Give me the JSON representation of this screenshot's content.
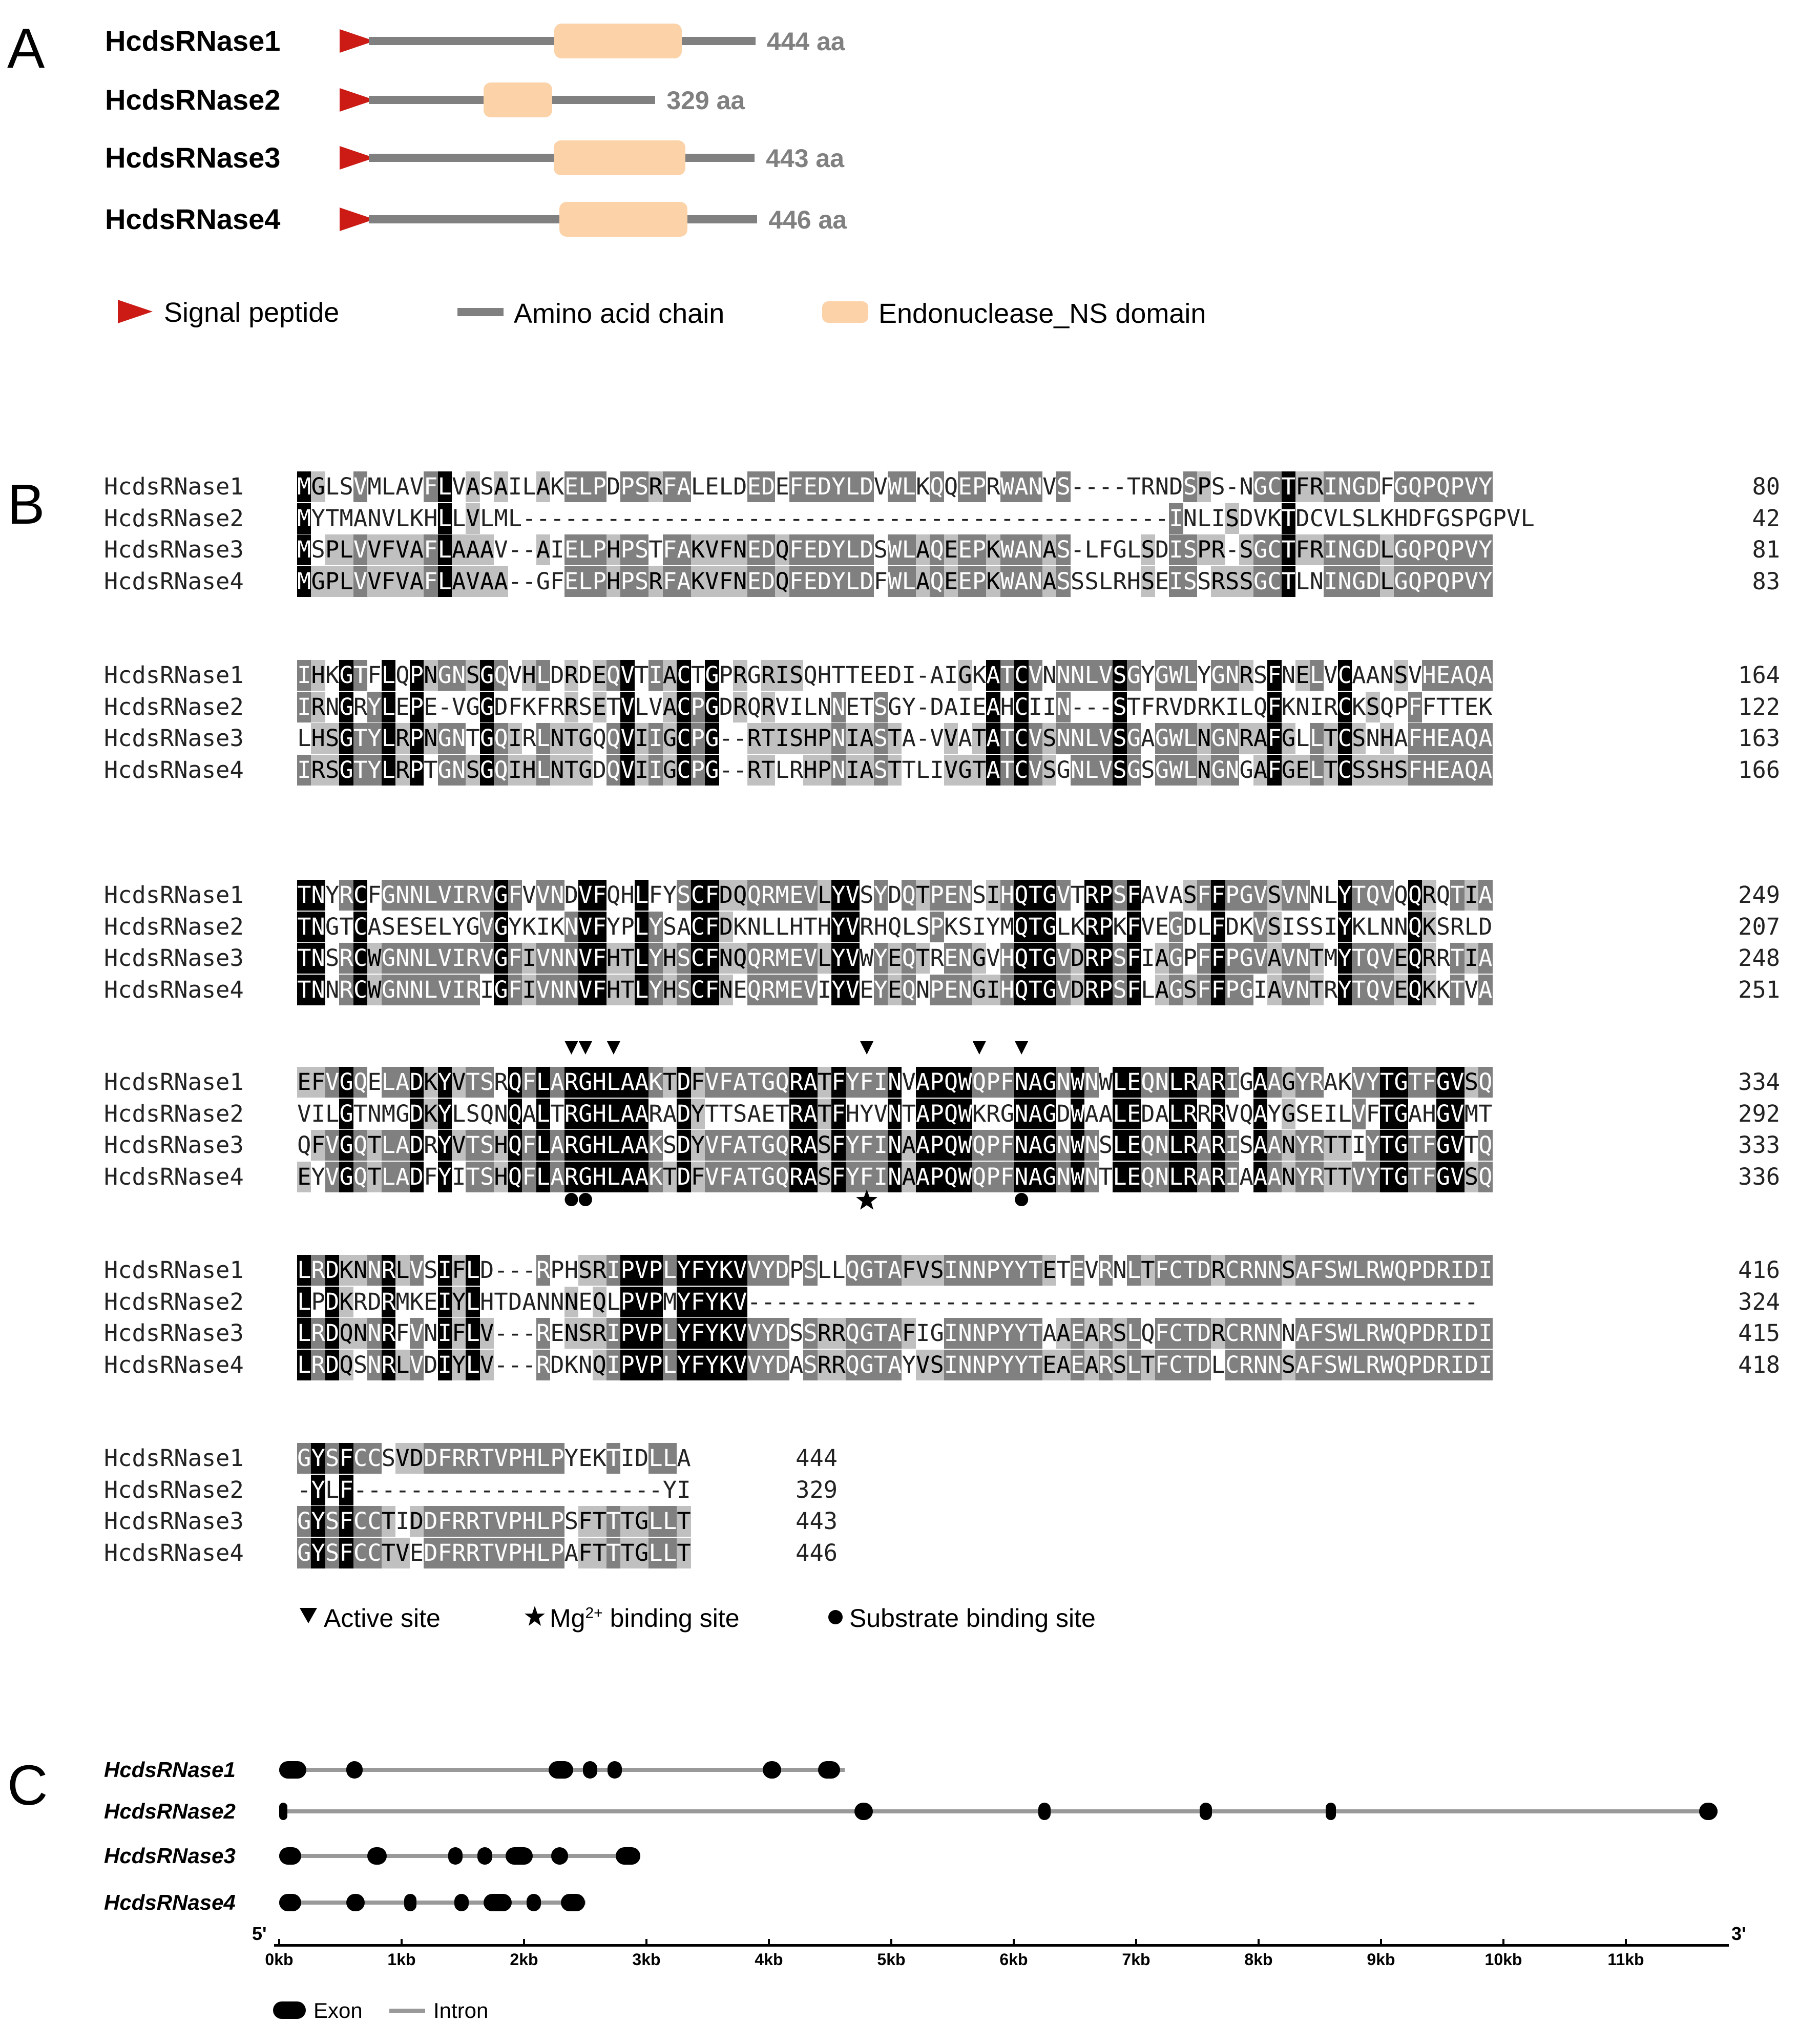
{
  "panel_a": {
    "letter": "A",
    "proteins": [
      {
        "name": "HcdsRNase1",
        "length_label": "444 aa",
        "length": 444,
        "domain_start": 0.48,
        "domain_end": 0.81
      },
      {
        "name": "HcdsRNase2",
        "length_label": "329 aa",
        "length": 329,
        "domain_start": 0.4,
        "domain_end": 0.64
      },
      {
        "name": "HcdsRNase3",
        "length_label": "443 aa",
        "length": 443,
        "domain_start": 0.48,
        "domain_end": 0.82
      },
      {
        "name": "HcdsRNase4",
        "length_label": "446 aa",
        "length": 446,
        "domain_start": 0.49,
        "domain_end": 0.82
      }
    ],
    "legend": {
      "signal_peptide": "Signal peptide",
      "amino_acid_chain": "Amino acid chain",
      "endonuclease_domain": "Endonuclease_NS domain"
    },
    "colors": {
      "signal": "#cc1a14",
      "chain": "#808080",
      "domain": "#fcd2a8"
    }
  },
  "panel_b": {
    "letter": "B",
    "blocks": [
      {
        "rows": [
          {
            "name": "HcdsRNase1",
            "seq": "MGLSVMLAVFLVASAILAKELPDPSRFALELDEDEFEDYLDVWLKQQEPRWANVS----TRNDSPS-NGCTFRINGDFGQPQPVY",
            "end": "80"
          },
          {
            "name": "HcdsRNase2",
            "seq": "MYTMANVLKHLLVLML----------------------------------------------INLISDVKTDCVLSLKHDFGSPGPVL",
            "end": "42"
          },
          {
            "name": "HcdsRNase3",
            "seq": "MSPLVVFVAFLAAAV--AIELPHPSTFAKVFNEDQFEDYLDSWLAQEEPKWANAS-LFGLSDISPR-SGCTFRINGDLGQPQPVY",
            "end": "81"
          },
          {
            "name": "HcdsRNase4",
            "seq": "MGPLVVFVAFLAVAA--GFELPHPSRFAKVFNEDQFEDYLDFWLAQEEPKWANASSSLRHSEISSRSSGCTLNINGDLGQPQPVY",
            "end": "83"
          }
        ]
      },
      {
        "rows": [
          {
            "name": "HcdsRNase1",
            "seq": "IHKGTFLQPNGNSGQVHLDRDEQVTIACTGPRGRISQHTTEEDI-AIGKATCVNNNLVSGYGWLYGNRSFNELVCAANSVHEAQA",
            "end": "164"
          },
          {
            "name": "HcdsRNase2",
            "seq": "IRNGRYLEPE-VGGDFKFRRSETVLVACPGDRQRVILNNETSGY-DAIEAHCIIN---STFRVDRKILQFKNIRCKSQPFFTTEK",
            "end": "122"
          },
          {
            "name": "HcdsRNase3",
            "seq": "LHSGTYLRPNGNTGQIRLNTGQQVIIGCPG--RTISHPNIASTA-VVATATCVSNNLVSGAGWLNGNRAFGLLTCSNHAFHEAQA",
            "end": "163"
          },
          {
            "name": "HcdsRNase4",
            "seq": "IRSGTYLRPTGNSGQIHLNTGDQVIIGCPG--RTLRHPNIASTTLIVGTATCVSGNLVSGSGWLNGNGAFGELTCSSHSFHEAQA",
            "end": "166"
          }
        ]
      },
      {
        "rows": [
          {
            "name": "HcdsRNase1",
            "seq": "TNYRCFGNNLVIRVGFVVNDVFQHLFYSCFDQQRMEVLYVSYDQTPENSIHQTGVTRPSFAVASFFPGVSVNNLYTQVQQRQTIA",
            "end": "249"
          },
          {
            "name": "HcdsRNase2",
            "seq": "TNGTCASESELYGVGYKIKNVFYPLYSACFDKNLLHTHYVRHQLSPKSIYMQTGLKRPKFVEGDLFDKVSISSIYKLNNQKSRLD",
            "end": "207"
          },
          {
            "name": "HcdsRNase3",
            "seq": "TNSRCWGNNLVIRVGFIVNNVFHTLYHSCFNQQRMEVLYVWYEQTRENGVHQTGVDRPSFIAGPFFPGVAVNTMYTQVEQRRTIA",
            "end": "248"
          },
          {
            "name": "HcdsRNase4",
            "seq": "TNNRCWGNNLVIRIGFIVNNVFHTLYHSCFNEQRMEVIYVEYEQNPENGIHQTGVDRPSFLAGSFFPGIAVNTRYTQVEQKKTVA",
            "end": "251"
          }
        ]
      },
      {
        "rows": [
          {
            "name": "HcdsRNase1",
            "seq": "EFVGQELADKYVTSRQFLARGHLAAKTDFVFATGQRATFYFINVAPQWQPFNAGNWNWLEQNLRARIGAAGYRAKVYTGTFGVSQ",
            "end": "334"
          },
          {
            "name": "HcdsRNase2",
            "seq": "VILGTNMGDKYLSQNQALTRGHLAARADYTTSAETRATFHYVNTAPQWKRGNAGDWAALEDALRRRVQAYGSEILVFTGAHGVMT",
            "end": "292"
          },
          {
            "name": "HcdsRNase3",
            "seq": "QFVGQTLADRYVTSHQFLARGHLAAKSDYVFATGQRASFYFINAAPQWQPFNAGNWNSLEQNLRARISAANYRTTIYTGTFGVTQ",
            "end": "333"
          },
          {
            "name": "HcdsRNase4",
            "seq": "EYVGQTLADFYITSHQFLARGHLAAKTDFVFATGQRASFYFINAAPQWQPFNAGNWNTLEQNLRARIAAANYRTTVYTGTFGVSQ",
            "end": "336"
          }
        ]
      },
      {
        "rows": [
          {
            "name": "HcdsRNase1",
            "seq": "LRDKNNRLVSIFLD---RPHSRIPVPLYFYKVVYDPSLLQGTAFVSINNPYYTETEVRNLTFCTDRCRNNSAFSWLRWQPDRIDI",
            "end": "416"
          },
          {
            "name": "HcdsRNase2",
            "seq": "LPDKRDRMKEIYLHTDANNNEQLPVPMYFYKV----------------------------------------------------",
            "end": "324"
          },
          {
            "name": "HcdsRNase3",
            "seq": "LRDQNNRFVNIFLV---RENSRIPVPLYFYKVVYDSSRRQGTAFIGINNPYYTAAEARSLQFCTDRCRNNNAFSWLRWQPDRIDI",
            "end": "415"
          },
          {
            "name": "HcdsRNase4",
            "seq": "LRDQSNRLVDIYLV---RDKNQIPVPLYFYKVVYDASRRQGTAYVSINNPYYTEAEARSLTFCTDLCRNNSAFSWLRWQPDRIDI",
            "end": "418"
          }
        ]
      },
      {
        "rows": [
          {
            "name": "HcdsRNase1",
            "seq": "GYSFCCSVDDFRRTVPHLPYEKTIDLLA",
            "end": "444"
          },
          {
            "name": "HcdsRNase2",
            "seq": "-YLF----------------------YI",
            "end": "329"
          },
          {
            "name": "HcdsRNase3",
            "seq": "GYSFCCTIDDFRRTVPHLPSFTTTGLLT",
            "end": "443"
          },
          {
            "name": "HcdsRNase4",
            "seq": "GYSFCCTVEDFRRTVPHLPAFTTTGLLT",
            "end": "446"
          }
        ]
      }
    ],
    "legend": {
      "active_site": "Active site",
      "mg_prefix": "Mg",
      "mg_sup": "2+",
      "mg_suffix": " binding site",
      "substrate": "Substrate binding site"
    }
  },
  "panel_c": {
    "letter": "C",
    "five_prime": "5'",
    "three_prime": "3'",
    "genes": [
      {
        "name": "HcdsRNase1",
        "span_kb": [
          0.0,
          4.62
        ],
        "exons_kb": [
          [
            0.0,
            0.22
          ],
          [
            0.55,
            0.68
          ],
          [
            2.2,
            2.4
          ],
          [
            2.48,
            2.6
          ],
          [
            2.68,
            2.8
          ],
          [
            3.95,
            4.1
          ],
          [
            4.4,
            4.58
          ]
        ]
      },
      {
        "name": "HcdsRNase2",
        "span_kb": [
          0.0,
          11.75
        ],
        "exons_kb": [
          [
            0.0,
            0.05
          ],
          [
            4.7,
            4.85
          ],
          [
            6.2,
            6.3
          ],
          [
            7.52,
            7.62
          ],
          [
            8.55,
            8.63
          ],
          [
            11.6,
            11.75
          ]
        ]
      },
      {
        "name": "HcdsRNase3",
        "span_kb": [
          0.0,
          2.95
        ],
        "exons_kb": [
          [
            0.0,
            0.18
          ],
          [
            0.72,
            0.88
          ],
          [
            1.38,
            1.5
          ],
          [
            1.62,
            1.74
          ],
          [
            1.85,
            2.07
          ],
          [
            2.22,
            2.36
          ],
          [
            2.75,
            2.95
          ]
        ]
      },
      {
        "name": "HcdsRNase4",
        "span_kb": [
          0.0,
          2.5
        ],
        "exons_kb": [
          [
            0.0,
            0.18
          ],
          [
            0.55,
            0.7
          ],
          [
            1.02,
            1.12
          ],
          [
            1.43,
            1.55
          ],
          [
            1.67,
            1.9
          ],
          [
            2.02,
            2.14
          ],
          [
            2.3,
            2.5
          ]
        ]
      }
    ],
    "axis_ticks": [
      "0kb",
      "1kb",
      "2kb",
      "3kb",
      "4kb",
      "5kb",
      "6kb",
      "7kb",
      "8kb",
      "9kb",
      "10kb",
      "11kb"
    ],
    "legend": {
      "exon": "Exon",
      "intron": "Intron"
    }
  }
}
